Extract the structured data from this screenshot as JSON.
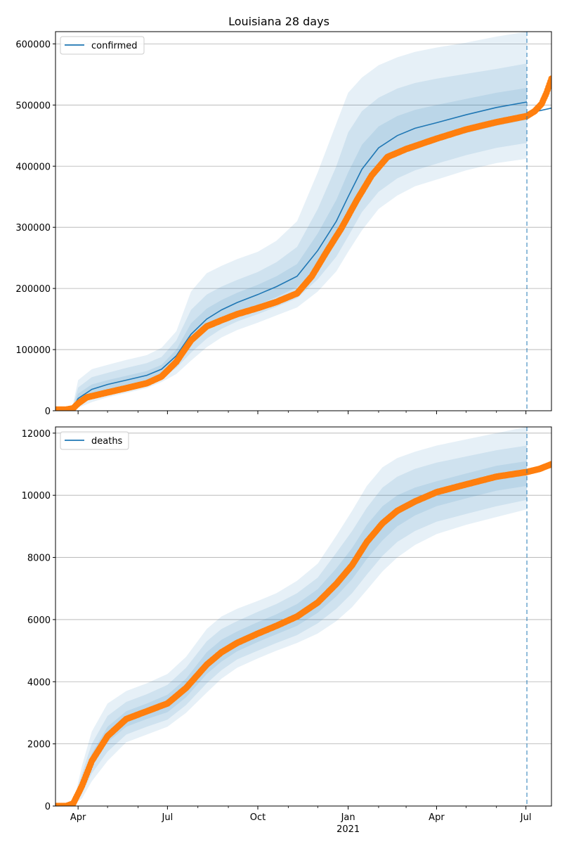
{
  "title": "Louisiana 28 days",
  "colors": {
    "model": "#1f77b4",
    "observed": "#ff7f0e",
    "band": "#1f77b4",
    "grid": "#b0b0b0",
    "forecast_line": "#1f77b4"
  },
  "x_axis": {
    "range": [
      "2020-03-09",
      "2021-07-27"
    ],
    "major_ticks": [
      {
        "date": "2020-04-01",
        "label": "Apr"
      },
      {
        "date": "2020-07-01",
        "label": "Jul"
      },
      {
        "date": "2020-10-01",
        "label": "Oct"
      },
      {
        "date": "2021-01-01",
        "label": "Jan"
      },
      {
        "date": "2021-04-01",
        "label": "Apr"
      },
      {
        "date": "2021-07-01",
        "label": "Jul"
      }
    ],
    "minor_ticks": [
      "2020-05-01",
      "2020-06-01",
      "2020-08-01",
      "2020-09-01",
      "2020-11-01",
      "2020-12-01",
      "2021-02-01",
      "2021-03-01",
      "2021-05-01",
      "2021-06-01"
    ],
    "year_label": {
      "date": "2021-01-01",
      "text": "2021"
    }
  },
  "forecast_date": "2021-07-02",
  "chart_data": [
    {
      "type": "line",
      "legend": "confirmed",
      "legend_position": "upper-left",
      "grid": true,
      "ylim": [
        0,
        620000
      ],
      "yticks": [
        {
          "value": 0,
          "label": "0"
        },
        {
          "value": 100000,
          "label": "100000"
        },
        {
          "value": 200000,
          "label": "200000"
        },
        {
          "value": 300000,
          "label": "300000"
        },
        {
          "value": 400000,
          "label": "400000"
        },
        {
          "value": 500000,
          "label": "500000"
        },
        {
          "value": 600000,
          "label": "600000"
        }
      ],
      "model": {
        "dates": [
          "2020-03-09",
          "2020-03-20",
          "2020-03-26",
          "2020-04-01",
          "2020-04-15",
          "2020-05-01",
          "2020-05-20",
          "2020-06-10",
          "2020-06-25",
          "2020-07-10",
          "2020-07-25",
          "2020-08-10",
          "2020-08-25",
          "2020-09-10",
          "2020-10-01",
          "2020-10-20",
          "2020-11-10",
          "2020-12-01",
          "2020-12-20",
          "2021-01-01",
          "2021-01-15",
          "2021-02-01",
          "2021-02-20",
          "2021-03-10",
          "2021-04-01",
          "2021-05-01",
          "2021-06-01",
          "2021-07-02",
          "2021-07-02",
          "2021-07-27"
        ],
        "values": [
          0,
          0,
          3000,
          20000,
          35000,
          43000,
          50000,
          58000,
          68000,
          90000,
          125000,
          150000,
          165000,
          177000,
          190000,
          203000,
          220000,
          262000,
          310000,
          350000,
          395000,
          430000,
          450000,
          462000,
          471000,
          484000,
          496000,
          505000,
          486000,
          495000
        ],
        "bands": {
          "outer_upper": [
            0,
            0,
            5000,
            50000,
            68000,
            75000,
            83000,
            91000,
            103000,
            130000,
            195000,
            225000,
            237000,
            248000,
            260000,
            278000,
            310000,
            390000,
            470000,
            520000,
            545000,
            565000,
            578000,
            587000,
            594000,
            602000,
            612000,
            620000,
            null,
            null
          ],
          "mid_upper": [
            0,
            0,
            4000,
            38000,
            55000,
            62000,
            70000,
            78000,
            88000,
            115000,
            165000,
            190000,
            203000,
            214000,
            227000,
            243000,
            268000,
            330000,
            400000,
            455000,
            490000,
            512000,
            527000,
            536000,
            543000,
            551000,
            559000,
            568000,
            null,
            null
          ],
          "inner_upper": [
            0,
            0,
            3500,
            28000,
            43000,
            50000,
            57000,
            65000,
            75000,
            100000,
            143000,
            167000,
            181000,
            193000,
            206000,
            220000,
            240000,
            290000,
            345000,
            390000,
            435000,
            465000,
            482000,
            492000,
            500000,
            510000,
            520000,
            528000,
            null,
            null
          ],
          "inner_lower": [
            0,
            0,
            2500,
            14000,
            27000,
            35000,
            42000,
            50000,
            60000,
            80000,
            108000,
            133000,
            149000,
            161000,
            173000,
            186000,
            202000,
            236000,
            278000,
            315000,
            360000,
            397000,
            420000,
            432000,
            441000,
            454000,
            466000,
            476000,
            null,
            null
          ],
          "mid_lower": [
            0,
            0,
            2000,
            9000,
            20000,
            28000,
            35000,
            43000,
            53000,
            70000,
            95000,
            118000,
            134000,
            146000,
            158000,
            170000,
            184000,
            215000,
            252000,
            285000,
            325000,
            358000,
            380000,
            393000,
            404000,
            418000,
            430000,
            438000,
            null,
            null
          ],
          "outer_lower": [
            0,
            0,
            1500,
            5000,
            14000,
            22000,
            29000,
            37000,
            47000,
            60000,
            82000,
            104000,
            120000,
            132000,
            144000,
            156000,
            169000,
            195000,
            228000,
            260000,
            295000,
            330000,
            352000,
            367000,
            378000,
            393000,
            405000,
            412000,
            null,
            null
          ]
        }
      },
      "observed": {
        "dates": [
          "2020-03-09",
          "2020-03-20",
          "2020-03-27",
          "2020-04-01",
          "2020-04-10",
          "2020-05-01",
          "2020-05-20",
          "2020-06-10",
          "2020-06-25",
          "2020-07-10",
          "2020-07-25",
          "2020-08-10",
          "2020-08-25",
          "2020-09-10",
          "2020-10-01",
          "2020-10-20",
          "2020-11-10",
          "2020-11-25",
          "2020-12-10",
          "2020-12-25",
          "2021-01-10",
          "2021-01-25",
          "2021-02-10",
          "2021-03-01",
          "2021-04-01",
          "2021-05-01",
          "2021-06-01",
          "2021-07-02",
          "2021-07-10",
          "2021-07-17",
          "2021-07-22",
          "2021-07-27"
        ],
        "values": [
          2000,
          2000,
          4000,
          12000,
          22000,
          30000,
          37000,
          45000,
          56000,
          80000,
          115000,
          138000,
          148000,
          158000,
          168000,
          178000,
          192000,
          220000,
          260000,
          298000,
          345000,
          385000,
          415000,
          428000,
          445000,
          460000,
          472000,
          482000,
          490000,
          502000,
          520000,
          543000
        ]
      }
    },
    {
      "type": "line",
      "legend": "deaths",
      "legend_position": "upper-left",
      "grid": true,
      "ylim": [
        0,
        12200
      ],
      "yticks": [
        {
          "value": 0,
          "label": "0"
        },
        {
          "value": 2000,
          "label": "2000"
        },
        {
          "value": 4000,
          "label": "4000"
        },
        {
          "value": 6000,
          "label": "6000"
        },
        {
          "value": 8000,
          "label": "8000"
        },
        {
          "value": 10000,
          "label": "10000"
        },
        {
          "value": 12000,
          "label": "12000"
        }
      ],
      "model": {
        "dates": [
          "2020-03-09",
          "2020-03-20",
          "2020-03-27",
          "2020-04-05",
          "2020-04-15",
          "2020-05-01",
          "2020-05-20",
          "2020-06-10",
          "2020-07-01",
          "2020-07-20",
          "2020-08-10",
          "2020-08-25",
          "2020-09-10",
          "2020-10-01",
          "2020-10-20",
          "2020-11-10",
          "2020-12-01",
          "2020-12-20",
          "2021-01-05",
          "2021-01-20",
          "2021-02-05",
          "2021-02-20",
          "2021-03-10",
          "2021-04-01",
          "2021-05-01",
          "2021-06-01",
          "2021-07-02"
        ],
        "values": [
          0,
          0,
          50,
          700,
          1500,
          2300,
          2800,
          3050,
          3300,
          3800,
          4600,
          5000,
          5300,
          5600,
          5850,
          6150,
          6600,
          7200,
          7800,
          8500,
          9100,
          9500,
          9800,
          10100,
          10350,
          10600,
          10750
        ],
        "bands": {
          "outer_upper": [
            0,
            0,
            80,
            1300,
            2400,
            3300,
            3700,
            3950,
            4250,
            4800,
            5700,
            6100,
            6350,
            6600,
            6850,
            7250,
            7800,
            8700,
            9500,
            10300,
            10900,
            11200,
            11400,
            11600,
            11800,
            12000,
            12200
          ],
          "mid_upper": [
            0,
            0,
            70,
            1050,
            2000,
            2900,
            3350,
            3600,
            3900,
            4450,
            5300,
            5700,
            5950,
            6250,
            6500,
            6850,
            7350,
            8150,
            8850,
            9600,
            10250,
            10600,
            10850,
            11050,
            11250,
            11450,
            11600
          ],
          "inner_upper": [
            0,
            0,
            60,
            850,
            1700,
            2550,
            3050,
            3300,
            3580,
            4100,
            4950,
            5350,
            5620,
            5920,
            6170,
            6500,
            6980,
            7650,
            8300,
            9050,
            9650,
            10000,
            10250,
            10450,
            10700,
            10950,
            11100
          ],
          "inner_lower": [
            0,
            0,
            40,
            550,
            1300,
            2050,
            2550,
            2800,
            3020,
            3500,
            4250,
            4650,
            4980,
            5280,
            5530,
            5800,
            6220,
            6750,
            7300,
            7950,
            8550,
            9000,
            9350,
            9650,
            9900,
            10150,
            10300
          ],
          "mid_lower": [
            0,
            0,
            30,
            400,
            1050,
            1750,
            2300,
            2550,
            2780,
            3250,
            3950,
            4370,
            4720,
            5000,
            5250,
            5500,
            5880,
            6350,
            6850,
            7450,
            8050,
            8500,
            8850,
            9150,
            9400,
            9650,
            9850
          ],
          "outer_lower": [
            0,
            0,
            20,
            250,
            800,
            1450,
            2050,
            2300,
            2550,
            3000,
            3650,
            4100,
            4450,
            4750,
            5000,
            5250,
            5550,
            5950,
            6400,
            6950,
            7550,
            8000,
            8400,
            8750,
            9050,
            9300,
            9550
          ]
        }
      },
      "observed": {
        "dates": [
          "2020-03-09",
          "2020-03-20",
          "2020-03-27",
          "2020-04-05",
          "2020-04-15",
          "2020-05-01",
          "2020-05-20",
          "2020-06-10",
          "2020-07-01",
          "2020-07-20",
          "2020-08-10",
          "2020-08-25",
          "2020-09-10",
          "2020-10-01",
          "2020-10-20",
          "2020-11-10",
          "2020-12-01",
          "2020-12-20",
          "2021-01-05",
          "2021-01-20",
          "2021-02-05",
          "2021-02-20",
          "2021-03-10",
          "2021-04-01",
          "2021-05-01",
          "2021-06-01",
          "2021-07-02",
          "2021-07-15",
          "2021-07-27"
        ],
        "values": [
          0,
          0,
          80,
          650,
          1450,
          2250,
          2800,
          3050,
          3300,
          3800,
          4550,
          4950,
          5250,
          5550,
          5800,
          6100,
          6550,
          7150,
          7750,
          8500,
          9100,
          9500,
          9800,
          10100,
          10350,
          10600,
          10750,
          10850,
          11000
        ]
      }
    }
  ]
}
